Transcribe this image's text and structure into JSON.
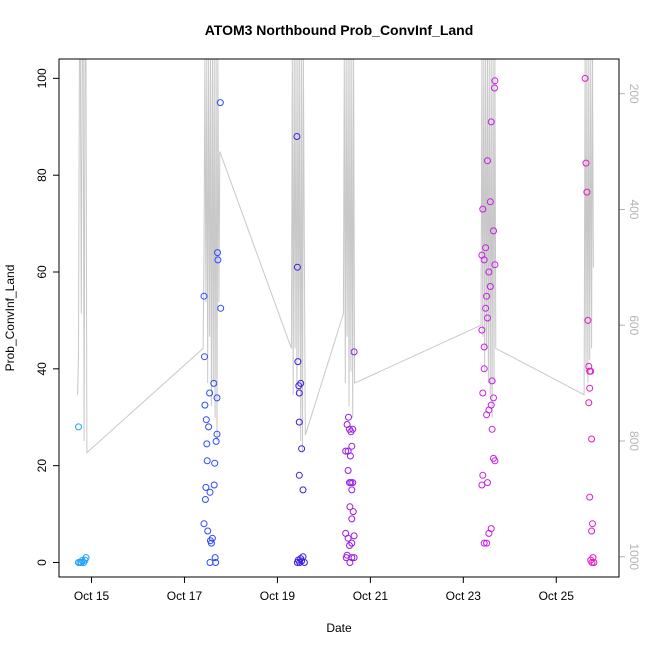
{
  "chart_data": {
    "type": "scatter",
    "title": "ATOM3 Northbound Prob_ConvInf_Land",
    "xlabel": "Date",
    "ylabel": "Prob_ConvInf_Land",
    "x_unit": "day of October (fractional)",
    "xlim": [
      14.3,
      26.35
    ],
    "ylim": [
      -3,
      104
    ],
    "x_ticks": [
      {
        "value": 15,
        "label": "Oct 15"
      },
      {
        "value": 17,
        "label": "Oct 17"
      },
      {
        "value": 19,
        "label": "Oct 19"
      },
      {
        "value": 21,
        "label": "Oct 21"
      },
      {
        "value": 23,
        "label": "Oct 23"
      },
      {
        "value": 25,
        "label": "Oct 25"
      }
    ],
    "y_ticks": [
      0,
      20,
      40,
      60,
      80,
      100
    ],
    "y2_axis": {
      "description": "secondary inverted axis for the grey line series",
      "range": [
        1035,
        140
      ],
      "ticks": [
        200,
        400,
        600,
        800,
        1000
      ]
    },
    "points": [
      {
        "x": 14.72,
        "y": 28,
        "color": "#1aa3ff"
      },
      {
        "x": 14.72,
        "y": 0,
        "color": "#1aa3ff"
      },
      {
        "x": 14.75,
        "y": 0,
        "color": "#1aa3ff"
      },
      {
        "x": 14.78,
        "y": 0,
        "color": "#1aa3ff"
      },
      {
        "x": 14.8,
        "y": 0.4,
        "color": "#1aa3ff"
      },
      {
        "x": 14.83,
        "y": 0,
        "color": "#1aa3ff"
      },
      {
        "x": 14.86,
        "y": 0.5,
        "color": "#1aa3ff"
      },
      {
        "x": 14.88,
        "y": 1,
        "color": "#1aa3ff"
      },
      {
        "x": 17.42,
        "y": 55,
        "color": "#2b4bff"
      },
      {
        "x": 17.43,
        "y": 42.5,
        "color": "#2b4bff"
      },
      {
        "x": 17.44,
        "y": 32.5,
        "color": "#2b4bff"
      },
      {
        "x": 17.42,
        "y": 8,
        "color": "#2b4bff"
      },
      {
        "x": 17.47,
        "y": 29.5,
        "color": "#2b4bff"
      },
      {
        "x": 17.48,
        "y": 24.5,
        "color": "#2b4bff"
      },
      {
        "x": 17.49,
        "y": 21,
        "color": "#2b4bff"
      },
      {
        "x": 17.46,
        "y": 15.5,
        "color": "#2b4bff"
      },
      {
        "x": 17.45,
        "y": 13,
        "color": "#2b4bff"
      },
      {
        "x": 17.5,
        "y": 6.5,
        "color": "#2b4bff"
      },
      {
        "x": 17.52,
        "y": 28,
        "color": "#2b4bff"
      },
      {
        "x": 17.54,
        "y": 35,
        "color": "#2b4bff"
      },
      {
        "x": 17.55,
        "y": 14.5,
        "color": "#2b4bff"
      },
      {
        "x": 17.56,
        "y": 4.5,
        "color": "#2b4bff"
      },
      {
        "x": 17.58,
        "y": 4,
        "color": "#2b4bff"
      },
      {
        "x": 17.6,
        "y": 5,
        "color": "#2b4bff"
      },
      {
        "x": 17.55,
        "y": 0,
        "color": "#2b4bff"
      },
      {
        "x": 17.63,
        "y": 37,
        "color": "#2b4bff"
      },
      {
        "x": 17.64,
        "y": 16,
        "color": "#2b4bff"
      },
      {
        "x": 17.65,
        "y": 20.5,
        "color": "#2b4bff"
      },
      {
        "x": 17.66,
        "y": 1,
        "color": "#2b4bff"
      },
      {
        "x": 17.67,
        "y": 0,
        "color": "#2b4bff"
      },
      {
        "x": 17.68,
        "y": 25,
        "color": "#2b4bff"
      },
      {
        "x": 17.7,
        "y": 26.5,
        "color": "#2b4bff"
      },
      {
        "x": 17.71,
        "y": 64,
        "color": "#2b4bff"
      },
      {
        "x": 17.72,
        "y": 62.5,
        "color": "#2b4bff"
      },
      {
        "x": 17.7,
        "y": 34,
        "color": "#2b4bff"
      },
      {
        "x": 17.77,
        "y": 95,
        "color": "#2b4bff"
      },
      {
        "x": 17.78,
        "y": 52.5,
        "color": "#2b4bff"
      },
      {
        "x": 19.42,
        "y": 88,
        "color": "#3c1ee0"
      },
      {
        "x": 19.43,
        "y": 61,
        "color": "#3c1ee0"
      },
      {
        "x": 19.44,
        "y": 41.5,
        "color": "#3c1ee0"
      },
      {
        "x": 19.46,
        "y": 36.5,
        "color": "#3c1ee0"
      },
      {
        "x": 19.5,
        "y": 37,
        "color": "#3c1ee0"
      },
      {
        "x": 19.47,
        "y": 35,
        "color": "#3c1ee0"
      },
      {
        "x": 19.47,
        "y": 29,
        "color": "#3c1ee0"
      },
      {
        "x": 19.52,
        "y": 23.5,
        "color": "#3c1ee0"
      },
      {
        "x": 19.47,
        "y": 18,
        "color": "#3c1ee0"
      },
      {
        "x": 19.55,
        "y": 15,
        "color": "#3c1ee0"
      },
      {
        "x": 19.43,
        "y": 0,
        "color": "#3c1ee0"
      },
      {
        "x": 19.45,
        "y": 0.5,
        "color": "#3c1ee0"
      },
      {
        "x": 19.48,
        "y": 0,
        "color": "#3c1ee0"
      },
      {
        "x": 19.5,
        "y": 0.8,
        "color": "#3c1ee0"
      },
      {
        "x": 19.52,
        "y": 0.3,
        "color": "#3c1ee0"
      },
      {
        "x": 19.55,
        "y": 1.2,
        "color": "#3c1ee0"
      },
      {
        "x": 19.58,
        "y": 0,
        "color": "#3c1ee0"
      },
      {
        "x": 20.47,
        "y": 23,
        "color": "#9a1ae6"
      },
      {
        "x": 20.5,
        "y": 28.5,
        "color": "#9a1ae6"
      },
      {
        "x": 20.53,
        "y": 30,
        "color": "#9a1ae6"
      },
      {
        "x": 20.55,
        "y": 27.5,
        "color": "#9a1ae6"
      },
      {
        "x": 20.58,
        "y": 27,
        "color": "#9a1ae6"
      },
      {
        "x": 20.62,
        "y": 27.5,
        "color": "#9a1ae6"
      },
      {
        "x": 20.52,
        "y": 23,
        "color": "#9a1ae6"
      },
      {
        "x": 20.57,
        "y": 22,
        "color": "#9a1ae6"
      },
      {
        "x": 20.6,
        "y": 24,
        "color": "#9a1ae6"
      },
      {
        "x": 20.52,
        "y": 19,
        "color": "#9a1ae6"
      },
      {
        "x": 20.55,
        "y": 16.5,
        "color": "#9a1ae6"
      },
      {
        "x": 20.58,
        "y": 16.5,
        "color": "#9a1ae6"
      },
      {
        "x": 20.6,
        "y": 15,
        "color": "#9a1ae6"
      },
      {
        "x": 20.62,
        "y": 16.5,
        "color": "#9a1ae6"
      },
      {
        "x": 20.56,
        "y": 11.5,
        "color": "#9a1ae6"
      },
      {
        "x": 20.6,
        "y": 9,
        "color": "#9a1ae6"
      },
      {
        "x": 20.63,
        "y": 10.5,
        "color": "#9a1ae6"
      },
      {
        "x": 20.47,
        "y": 6,
        "color": "#9a1ae6"
      },
      {
        "x": 20.52,
        "y": 5,
        "color": "#9a1ae6"
      },
      {
        "x": 20.55,
        "y": 3.5,
        "color": "#9a1ae6"
      },
      {
        "x": 20.6,
        "y": 4,
        "color": "#9a1ae6"
      },
      {
        "x": 20.65,
        "y": 5.5,
        "color": "#9a1ae6"
      },
      {
        "x": 20.5,
        "y": 1.5,
        "color": "#9a1ae6"
      },
      {
        "x": 20.48,
        "y": 1,
        "color": "#9a1ae6"
      },
      {
        "x": 20.56,
        "y": 0,
        "color": "#9a1ae6"
      },
      {
        "x": 20.6,
        "y": 1,
        "color": "#9a1ae6"
      },
      {
        "x": 20.65,
        "y": 1,
        "color": "#9a1ae6"
      },
      {
        "x": 20.65,
        "y": 43.5,
        "color": "#9a1ae6"
      },
      {
        "x": 23.4,
        "y": 63.5,
        "color": "#c81ee6"
      },
      {
        "x": 23.42,
        "y": 73,
        "color": "#c81ee6"
      },
      {
        "x": 23.45,
        "y": 62.5,
        "color": "#c81ee6"
      },
      {
        "x": 23.48,
        "y": 65,
        "color": "#c81ee6"
      },
      {
        "x": 23.4,
        "y": 48,
        "color": "#c81ee6"
      },
      {
        "x": 23.45,
        "y": 44.5,
        "color": "#c81ee6"
      },
      {
        "x": 23.48,
        "y": 52.5,
        "color": "#c81ee6"
      },
      {
        "x": 23.5,
        "y": 55,
        "color": "#c81ee6"
      },
      {
        "x": 23.52,
        "y": 50.5,
        "color": "#c81ee6"
      },
      {
        "x": 23.55,
        "y": 60,
        "color": "#c81ee6"
      },
      {
        "x": 23.58,
        "y": 57,
        "color": "#c81ee6"
      },
      {
        "x": 23.52,
        "y": 83,
        "color": "#c81ee6"
      },
      {
        "x": 23.58,
        "y": 74.5,
        "color": "#c81ee6"
      },
      {
        "x": 23.6,
        "y": 91,
        "color": "#c81ee6"
      },
      {
        "x": 23.45,
        "y": 40,
        "color": "#c81ee6"
      },
      {
        "x": 23.42,
        "y": 35,
        "color": "#c81ee6"
      },
      {
        "x": 23.5,
        "y": 30.5,
        "color": "#c81ee6"
      },
      {
        "x": 23.55,
        "y": 31.5,
        "color": "#c81ee6"
      },
      {
        "x": 23.6,
        "y": 32.5,
        "color": "#c81ee6"
      },
      {
        "x": 23.62,
        "y": 37.5,
        "color": "#c81ee6"
      },
      {
        "x": 23.65,
        "y": 34,
        "color": "#c81ee6"
      },
      {
        "x": 23.62,
        "y": 27.5,
        "color": "#c81ee6"
      },
      {
        "x": 23.65,
        "y": 21.5,
        "color": "#c81ee6"
      },
      {
        "x": 23.68,
        "y": 21,
        "color": "#c81ee6"
      },
      {
        "x": 23.42,
        "y": 18,
        "color": "#c81ee6"
      },
      {
        "x": 23.4,
        "y": 16,
        "color": "#c81ee6"
      },
      {
        "x": 23.52,
        "y": 16.5,
        "color": "#c81ee6"
      },
      {
        "x": 23.6,
        "y": 7,
        "color": "#c81ee6"
      },
      {
        "x": 23.55,
        "y": 6,
        "color": "#c81ee6"
      },
      {
        "x": 23.45,
        "y": 4,
        "color": "#c81ee6"
      },
      {
        "x": 23.5,
        "y": 4,
        "color": "#c81ee6"
      },
      {
        "x": 23.65,
        "y": 68.5,
        "color": "#c81ee6"
      },
      {
        "x": 23.68,
        "y": 61.5,
        "color": "#c81ee6"
      },
      {
        "x": 23.67,
        "y": 98,
        "color": "#c81ee6"
      },
      {
        "x": 23.68,
        "y": 99.5,
        "color": "#c81ee6"
      },
      {
        "x": 25.62,
        "y": 100,
        "color": "#e619c8"
      },
      {
        "x": 25.64,
        "y": 82.5,
        "color": "#e619c8"
      },
      {
        "x": 25.66,
        "y": 76.5,
        "color": "#e619c8"
      },
      {
        "x": 25.68,
        "y": 50,
        "color": "#e619c8"
      },
      {
        "x": 25.7,
        "y": 40.5,
        "color": "#e619c8"
      },
      {
        "x": 25.72,
        "y": 39.5,
        "color": "#e619c8"
      },
      {
        "x": 25.74,
        "y": 39.5,
        "color": "#e619c8"
      },
      {
        "x": 25.72,
        "y": 36,
        "color": "#e619c8"
      },
      {
        "x": 25.7,
        "y": 33,
        "color": "#e619c8"
      },
      {
        "x": 25.76,
        "y": 25.5,
        "color": "#e619c8"
      },
      {
        "x": 25.72,
        "y": 13.5,
        "color": "#e619c8"
      },
      {
        "x": 25.78,
        "y": 8,
        "color": "#e619c8"
      },
      {
        "x": 25.76,
        "y": 6.5,
        "color": "#e619c8"
      },
      {
        "x": 25.74,
        "y": 0.5,
        "color": "#e619c8"
      },
      {
        "x": 25.77,
        "y": 0,
        "color": "#e619c8"
      },
      {
        "x": 25.79,
        "y": 1,
        "color": "#e619c8"
      },
      {
        "x": 25.81,
        "y": 0,
        "color": "#e619c8"
      }
    ],
    "line_series": {
      "name": "grey trace (right axis)",
      "color": "#c8c8c8",
      "points": [
        [
          14.7,
          720
        ],
        [
          14.72,
          650
        ],
        [
          14.74,
          140
        ],
        [
          14.76,
          140
        ],
        [
          14.78,
          580
        ],
        [
          14.8,
          140
        ],
        [
          14.82,
          140
        ],
        [
          14.84,
          800
        ],
        [
          14.86,
          140
        ],
        [
          14.88,
          140
        ],
        [
          14.9,
          820
        ],
        [
          17.4,
          640
        ],
        [
          17.42,
          470
        ],
        [
          17.44,
          140
        ],
        [
          17.46,
          560
        ],
        [
          17.48,
          140
        ],
        [
          17.5,
          700
        ],
        [
          17.52,
          140
        ],
        [
          17.54,
          620
        ],
        [
          17.56,
          140
        ],
        [
          17.58,
          740
        ],
        [
          17.6,
          140
        ],
        [
          17.62,
          700
        ],
        [
          17.64,
          140
        ],
        [
          17.66,
          760
        ],
        [
          17.68,
          140
        ],
        [
          17.7,
          800
        ],
        [
          17.72,
          140
        ],
        [
          17.74,
          560
        ],
        [
          17.76,
          300
        ],
        [
          19.3,
          640
        ],
        [
          19.32,
          140
        ],
        [
          19.34,
          720
        ],
        [
          19.36,
          140
        ],
        [
          19.38,
          640
        ],
        [
          19.4,
          140
        ],
        [
          19.42,
          720
        ],
        [
          19.44,
          140
        ],
        [
          19.46,
          660
        ],
        [
          19.48,
          140
        ],
        [
          19.5,
          800
        ],
        [
          19.52,
          140
        ],
        [
          19.54,
          820
        ],
        [
          19.56,
          140
        ],
        [
          19.6,
          790
        ],
        [
          20.42,
          580
        ],
        [
          20.44,
          140
        ],
        [
          20.46,
          700
        ],
        [
          20.48,
          140
        ],
        [
          20.5,
          620
        ],
        [
          20.52,
          140
        ],
        [
          20.54,
          740
        ],
        [
          20.56,
          140
        ],
        [
          20.58,
          680
        ],
        [
          20.6,
          140
        ],
        [
          20.62,
          760
        ],
        [
          20.64,
          140
        ],
        [
          20.66,
          700
        ],
        [
          23.38,
          600
        ],
        [
          23.4,
          140
        ],
        [
          23.42,
          620
        ],
        [
          23.44,
          140
        ],
        [
          23.46,
          680
        ],
        [
          23.48,
          140
        ],
        [
          23.5,
          640
        ],
        [
          23.52,
          140
        ],
        [
          23.54,
          700
        ],
        [
          23.56,
          140
        ],
        [
          23.58,
          720
        ],
        [
          23.6,
          140
        ],
        [
          23.62,
          760
        ],
        [
          23.64,
          140
        ],
        [
          23.66,
          700
        ],
        [
          23.68,
          140
        ],
        [
          23.7,
          640
        ],
        [
          25.6,
          720
        ],
        [
          25.62,
          140
        ],
        [
          25.64,
          680
        ],
        [
          25.66,
          140
        ],
        [
          25.68,
          700
        ],
        [
          25.7,
          140
        ],
        [
          25.72,
          660
        ],
        [
          25.74,
          140
        ],
        [
          25.76,
          640
        ],
        [
          25.78,
          140
        ],
        [
          25.8,
          500
        ]
      ]
    }
  }
}
